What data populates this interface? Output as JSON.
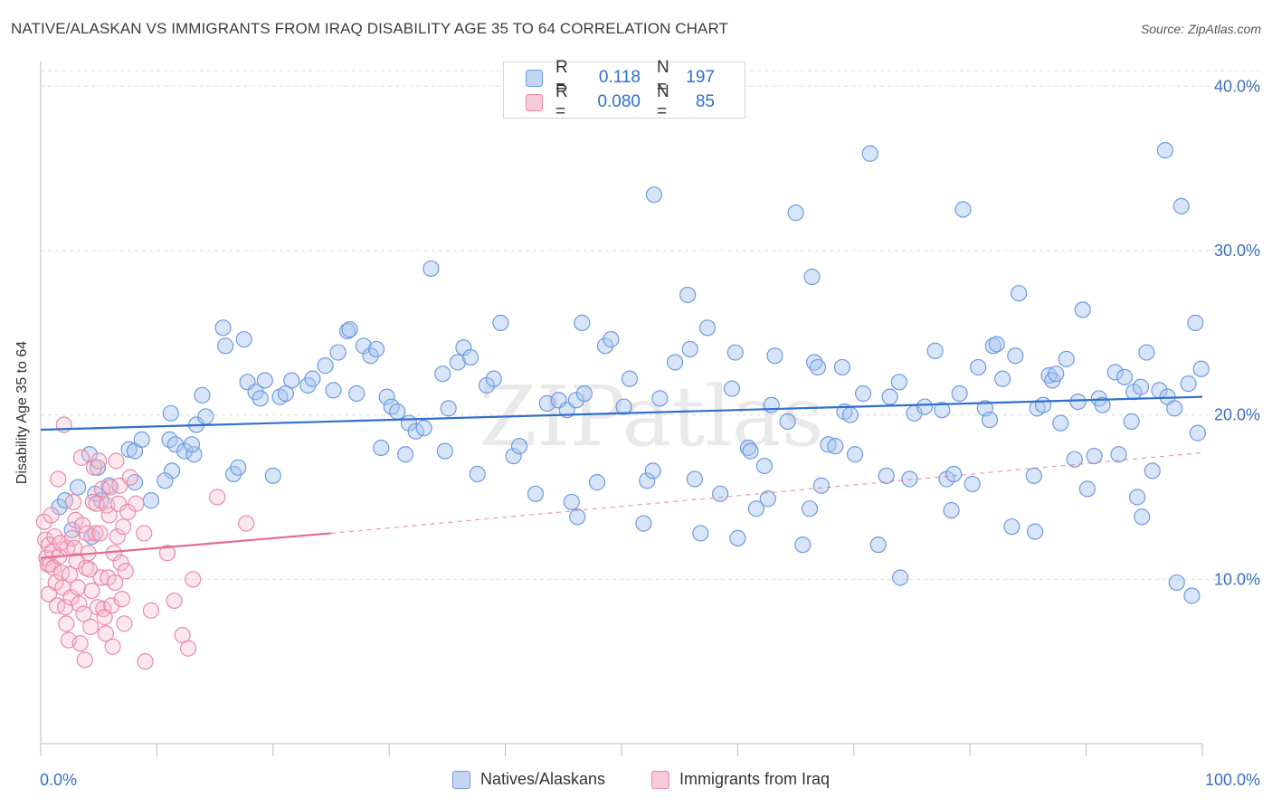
{
  "title": "NATIVE/ALASKAN VS IMMIGRANTS FROM IRAQ DISABILITY AGE 35 TO 64 CORRELATION CHART",
  "source": "Source: ZipAtlas.com",
  "watermark": "ZIPatlas",
  "legend": {
    "rows": [
      {
        "r_label": "R =",
        "r_value": "0.118",
        "n_label": "N =",
        "n_value": "197"
      },
      {
        "r_label": "R =",
        "r_value": "0.080",
        "n_label": "N =",
        "n_value": "85"
      }
    ]
  },
  "bottom_legend": [
    "Natives/Alaskans",
    "Immigrants from Iraq"
  ],
  "colors": {
    "blue_fill": "#a9c6f0",
    "blue_stroke": "#6d9be0",
    "blue_line": "#2f6fce",
    "pink_fill": "#f5b9cb",
    "pink_stroke": "#e98aa8",
    "pink_line": "#e36a93",
    "axis_text": "#3a6fc4",
    "grid": "#dcdcdc"
  },
  "chart_data": {
    "type": "scatter",
    "title": "NATIVE/ALASKAN VS IMMIGRANTS FROM IRAQ DISABILITY AGE 35 TO 64 CORRELATION CHART",
    "xlabel": "",
    "ylabel": "Disability Age 35 to 64",
    "xlim": [
      0,
      100
    ],
    "ylim": [
      0,
      41.5
    ],
    "x_tick_labels": [
      "0.0%",
      "100.0%"
    ],
    "y_ticks": [
      10,
      20,
      30,
      40
    ],
    "y_tick_labels": [
      "10.0%",
      "20.0%",
      "30.0%",
      "40.0%"
    ],
    "grid": "horizontal dashed",
    "legend_position": "top-center",
    "series": [
      {
        "name": "Natives/Alaskans",
        "R": 0.118,
        "N": 197,
        "trend": {
          "x": [
            0,
            100
          ],
          "y": [
            19.1,
            21.1
          ]
        },
        "points": [
          [
            4.4,
            12.6
          ],
          [
            1.6,
            14.4
          ],
          [
            2.7,
            13.0
          ],
          [
            4.7,
            15.2
          ],
          [
            5.9,
            15.7
          ],
          [
            3.2,
            15.6
          ],
          [
            5.2,
            14.8
          ],
          [
            2.1,
            14.8
          ],
          [
            4.9,
            16.8
          ],
          [
            4.2,
            17.6
          ],
          [
            7.6,
            17.9
          ],
          [
            8.1,
            17.8
          ],
          [
            8.7,
            18.5
          ],
          [
            8.1,
            15.9
          ],
          [
            11.3,
            16.6
          ],
          [
            10.7,
            16.0
          ],
          [
            11.2,
            20.1
          ],
          [
            9.5,
            14.8
          ],
          [
            11.1,
            18.5
          ],
          [
            11.6,
            18.2
          ],
          [
            12.4,
            17.8
          ],
          [
            13.2,
            17.6
          ],
          [
            13.0,
            18.2
          ],
          [
            13.4,
            19.4
          ],
          [
            14.2,
            19.9
          ],
          [
            13.9,
            21.2
          ],
          [
            15.7,
            25.3
          ],
          [
            15.9,
            24.2
          ],
          [
            17.5,
            24.6
          ],
          [
            16.6,
            16.4
          ],
          [
            17.0,
            16.8
          ],
          [
            17.8,
            22.0
          ],
          [
            18.5,
            21.4
          ],
          [
            18.9,
            21.0
          ],
          [
            19.3,
            22.1
          ],
          [
            20.0,
            16.3
          ],
          [
            20.6,
            21.1
          ],
          [
            21.1,
            21.3
          ],
          [
            21.6,
            22.1
          ],
          [
            23.0,
            21.8
          ],
          [
            23.4,
            22.2
          ],
          [
            24.5,
            23.0
          ],
          [
            25.2,
            21.5
          ],
          [
            25.6,
            23.8
          ],
          [
            26.4,
            25.1
          ],
          [
            26.6,
            25.2
          ],
          [
            27.2,
            21.3
          ],
          [
            27.8,
            24.2
          ],
          [
            28.4,
            23.6
          ],
          [
            28.9,
            24.0
          ],
          [
            29.3,
            18.0
          ],
          [
            29.8,
            21.1
          ],
          [
            30.2,
            20.5
          ],
          [
            30.7,
            20.2
          ],
          [
            31.4,
            17.6
          ],
          [
            31.7,
            19.5
          ],
          [
            32.3,
            19.0
          ],
          [
            33.0,
            19.2
          ],
          [
            33.6,
            28.9
          ],
          [
            34.6,
            22.5
          ],
          [
            34.8,
            17.8
          ],
          [
            35.1,
            20.4
          ],
          [
            35.9,
            23.2
          ],
          [
            36.4,
            24.1
          ],
          [
            37.0,
            23.5
          ],
          [
            37.6,
            16.4
          ],
          [
            38.4,
            21.8
          ],
          [
            39.0,
            22.2
          ],
          [
            39.6,
            25.6
          ],
          [
            40.7,
            17.5
          ],
          [
            41.2,
            18.1
          ],
          [
            42.6,
            15.2
          ],
          [
            43.6,
            20.7
          ],
          [
            44.6,
            20.9
          ],
          [
            45.3,
            20.3
          ],
          [
            45.7,
            14.7
          ],
          [
            46.1,
            20.9
          ],
          [
            46.2,
            13.8
          ],
          [
            46.6,
            25.6
          ],
          [
            46.8,
            21.3
          ],
          [
            47.9,
            15.9
          ],
          [
            48.6,
            24.2
          ],
          [
            49.1,
            24.6
          ],
          [
            50.2,
            20.5
          ],
          [
            50.7,
            22.2
          ],
          [
            51.9,
            13.4
          ],
          [
            52.2,
            16.0
          ],
          [
            52.7,
            16.6
          ],
          [
            52.8,
            33.4
          ],
          [
            53.3,
            21.0
          ],
          [
            54.6,
            23.2
          ],
          [
            55.7,
            27.3
          ],
          [
            55.9,
            24.0
          ],
          [
            56.3,
            16.1
          ],
          [
            56.8,
            12.8
          ],
          [
            57.4,
            25.3
          ],
          [
            58.5,
            15.2
          ],
          [
            59.5,
            21.6
          ],
          [
            59.8,
            23.8
          ],
          [
            60.0,
            12.5
          ],
          [
            60.9,
            18.0
          ],
          [
            61.1,
            17.8
          ],
          [
            61.6,
            14.3
          ],
          [
            62.3,
            16.9
          ],
          [
            62.6,
            14.9
          ],
          [
            62.9,
            20.6
          ],
          [
            63.2,
            23.6
          ],
          [
            64.3,
            19.6
          ],
          [
            65.0,
            32.3
          ],
          [
            65.6,
            12.1
          ],
          [
            66.2,
            14.3
          ],
          [
            66.4,
            28.4
          ],
          [
            66.6,
            23.2
          ],
          [
            66.9,
            22.9
          ],
          [
            67.2,
            15.7
          ],
          [
            67.8,
            18.2
          ],
          [
            68.4,
            18.1
          ],
          [
            69.0,
            22.9
          ],
          [
            69.2,
            20.2
          ],
          [
            69.7,
            20.0
          ],
          [
            70.1,
            17.6
          ],
          [
            70.8,
            21.3
          ],
          [
            71.4,
            35.9
          ],
          [
            72.1,
            12.1
          ],
          [
            72.8,
            16.3
          ],
          [
            73.1,
            21.1
          ],
          [
            73.9,
            22.0
          ],
          [
            74.0,
            10.1
          ],
          [
            74.8,
            16.1
          ],
          [
            75.2,
            20.1
          ],
          [
            76.1,
            20.5
          ],
          [
            77.0,
            23.9
          ],
          [
            77.6,
            20.3
          ],
          [
            78.0,
            16.1
          ],
          [
            78.4,
            14.2
          ],
          [
            78.6,
            16.4
          ],
          [
            79.1,
            21.3
          ],
          [
            79.4,
            32.5
          ],
          [
            80.2,
            15.8
          ],
          [
            80.7,
            22.9
          ],
          [
            81.3,
            20.4
          ],
          [
            81.7,
            19.7
          ],
          [
            82.0,
            24.2
          ],
          [
            82.3,
            24.3
          ],
          [
            82.8,
            22.2
          ],
          [
            83.6,
            13.2
          ],
          [
            83.9,
            23.6
          ],
          [
            84.2,
            27.4
          ],
          [
            85.5,
            16.3
          ],
          [
            85.6,
            12.9
          ],
          [
            85.8,
            20.4
          ],
          [
            86.3,
            20.6
          ],
          [
            86.8,
            22.4
          ],
          [
            87.1,
            22.1
          ],
          [
            87.4,
            22.5
          ],
          [
            87.8,
            19.5
          ],
          [
            88.3,
            23.4
          ],
          [
            89.0,
            17.3
          ],
          [
            89.3,
            20.8
          ],
          [
            89.7,
            26.4
          ],
          [
            90.1,
            15.5
          ],
          [
            90.7,
            17.5
          ],
          [
            91.1,
            21.0
          ],
          [
            91.4,
            20.6
          ],
          [
            92.5,
            22.6
          ],
          [
            92.8,
            17.6
          ],
          [
            93.3,
            22.3
          ],
          [
            93.9,
            19.6
          ],
          [
            94.1,
            21.4
          ],
          [
            94.4,
            15.0
          ],
          [
            94.7,
            21.7
          ],
          [
            94.8,
            13.8
          ],
          [
            95.2,
            23.8
          ],
          [
            95.7,
            16.6
          ],
          [
            96.3,
            21.5
          ],
          [
            96.8,
            36.1
          ],
          [
            97.0,
            21.1
          ],
          [
            97.6,
            20.4
          ],
          [
            97.8,
            9.8
          ],
          [
            98.2,
            32.7
          ],
          [
            98.8,
            21.9
          ],
          [
            99.1,
            9.0
          ],
          [
            99.4,
            25.6
          ],
          [
            99.6,
            18.9
          ],
          [
            99.9,
            22.8
          ]
        ]
      },
      {
        "name": "Immigrants from Iraq",
        "R": 0.08,
        "N": 85,
        "trend": {
          "x": [
            0,
            25
          ],
          "y": [
            11.3,
            12.8
          ]
        },
        "trend_extension": {
          "x": [
            25,
            100
          ],
          "y": [
            12.8,
            17.7
          ]
        },
        "points": [
          [
            0.3,
            13.5
          ],
          [
            0.4,
            12.4
          ],
          [
            0.5,
            11.3
          ],
          [
            0.6,
            10.9
          ],
          [
            0.7,
            12.1
          ],
          [
            0.7,
            9.1
          ],
          [
            0.8,
            10.9
          ],
          [
            0.9,
            13.9
          ],
          [
            1.0,
            11.7
          ],
          [
            1.1,
            10.7
          ],
          [
            1.2,
            12.6
          ],
          [
            1.3,
            9.8
          ],
          [
            1.4,
            8.4
          ],
          [
            1.5,
            16.1
          ],
          [
            1.6,
            11.4
          ],
          [
            1.7,
            12.2
          ],
          [
            1.8,
            10.4
          ],
          [
            1.9,
            9.5
          ],
          [
            2.0,
            19.4
          ],
          [
            2.1,
            8.3
          ],
          [
            2.2,
            7.3
          ],
          [
            2.3,
            11.9
          ],
          [
            2.4,
            6.3
          ],
          [
            2.5,
            10.3
          ],
          [
            2.6,
            8.9
          ],
          [
            2.7,
            12.5
          ],
          [
            2.8,
            14.7
          ],
          [
            2.9,
            11.9
          ],
          [
            3.0,
            13.6
          ],
          [
            3.1,
            11.1
          ],
          [
            3.2,
            9.5
          ],
          [
            3.3,
            8.5
          ],
          [
            3.4,
            6.1
          ],
          [
            3.5,
            17.4
          ],
          [
            3.6,
            13.3
          ],
          [
            3.7,
            7.9
          ],
          [
            3.8,
            5.1
          ],
          [
            3.9,
            10.7
          ],
          [
            4.0,
            12.8
          ],
          [
            4.1,
            11.6
          ],
          [
            4.2,
            10.6
          ],
          [
            4.3,
            7.1
          ],
          [
            4.4,
            9.3
          ],
          [
            4.5,
            14.7
          ],
          [
            4.6,
            16.8
          ],
          [
            4.7,
            12.8
          ],
          [
            4.8,
            14.6
          ],
          [
            4.9,
            8.3
          ],
          [
            5.0,
            17.2
          ],
          [
            5.1,
            12.8
          ],
          [
            5.2,
            10.1
          ],
          [
            5.3,
            15.5
          ],
          [
            5.4,
            8.2
          ],
          [
            5.5,
            7.7
          ],
          [
            5.6,
            6.7
          ],
          [
            5.7,
            14.5
          ],
          [
            5.8,
            10.1
          ],
          [
            5.9,
            13.9
          ],
          [
            6.0,
            15.6
          ],
          [
            6.1,
            8.4
          ],
          [
            6.2,
            5.9
          ],
          [
            6.3,
            11.6
          ],
          [
            6.4,
            9.8
          ],
          [
            6.5,
            17.2
          ],
          [
            6.6,
            12.6
          ],
          [
            6.7,
            14.6
          ],
          [
            6.8,
            15.7
          ],
          [
            6.9,
            11.0
          ],
          [
            7.0,
            8.8
          ],
          [
            7.1,
            13.2
          ],
          [
            7.2,
            7.3
          ],
          [
            7.3,
            10.5
          ],
          [
            7.5,
            14.1
          ],
          [
            7.7,
            16.2
          ],
          [
            8.2,
            14.6
          ],
          [
            8.9,
            12.8
          ],
          [
            9.0,
            5.0
          ],
          [
            9.5,
            8.1
          ],
          [
            10.9,
            11.6
          ],
          [
            11.5,
            8.7
          ],
          [
            12.2,
            6.6
          ],
          [
            12.7,
            5.8
          ],
          [
            13.1,
            10.0
          ],
          [
            15.2,
            15.0
          ],
          [
            17.7,
            13.4
          ]
        ]
      }
    ]
  }
}
